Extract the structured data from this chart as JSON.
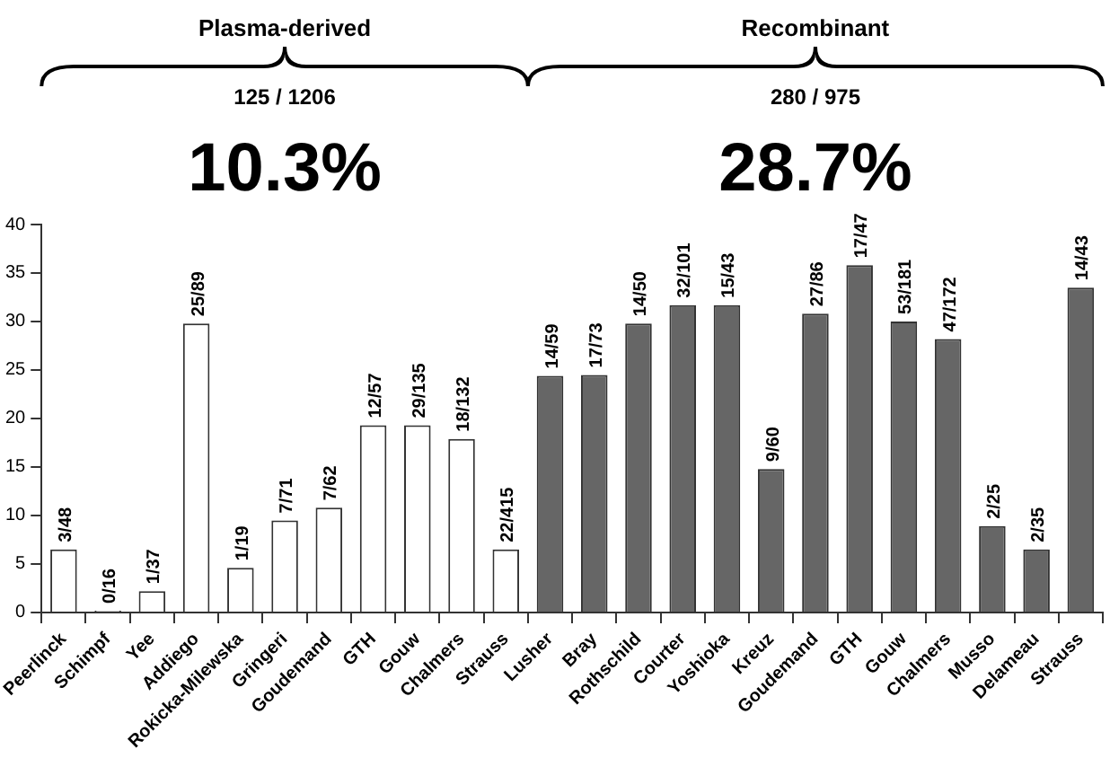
{
  "chart_data": {
    "type": "bar",
    "categories": [
      "Peerlinck",
      "Schimpf",
      "Yee",
      "Addiego",
      "Rokicka-Milewska",
      "Gringeri",
      "Goudemand",
      "GTH",
      "Gouw",
      "Chalmers",
      "Strauss",
      "Lusher",
      "Bray",
      "Rothschild",
      "Courter",
      "Yoshioka",
      "Kreuz",
      "Goudemand",
      "GTH",
      "Gouw",
      "Chalmers",
      "Musso",
      "Delameau",
      "Strauss"
    ],
    "values": [
      6.5,
      0,
      2.2,
      29.8,
      4.6,
      9.5,
      10.8,
      19.3,
      19.3,
      17.9,
      6.5,
      24.4,
      24.5,
      29.8,
      31.7,
      31.7,
      14.8,
      30.8,
      35.8,
      30.0,
      28.2,
      8.9,
      6.5,
      33.5
    ],
    "colors": [
      "#ffffff",
      "#ffffff",
      "#ffffff",
      "#ffffff",
      "#ffffff",
      "#ffffff",
      "#ffffff",
      "#ffffff",
      "#ffffff",
      "#ffffff",
      "#ffffff",
      "#666666",
      "#666666",
      "#666666",
      "#666666",
      "#666666",
      "#666666",
      "#666666",
      "#666666",
      "#666666",
      "#666666",
      "#666666",
      "#666666",
      "#666666"
    ],
    "value_labels": [
      "3/48",
      "0/16",
      "1/37",
      "25/89",
      "1/19",
      "7/71",
      "7/62",
      "12/57",
      "29/135",
      "18/132",
      "22/415",
      "14/59",
      "17/73",
      "14/50",
      "32/101",
      "15/43",
      "9/60",
      "27/86",
      "17/47",
      "53/181",
      "47/172",
      "2/25",
      "2/35",
      "14/43"
    ],
    "annotations": [
      "Plasma-derived",
      "125 / 1206",
      "10.3%",
      "Recombinant",
      "280 / 975",
      "28.7%"
    ],
    "ylim": [
      0,
      40
    ],
    "yticks": [
      0,
      5,
      10,
      15,
      20,
      25,
      30,
      35,
      40
    ],
    "grid": false,
    "legend": false
  }
}
